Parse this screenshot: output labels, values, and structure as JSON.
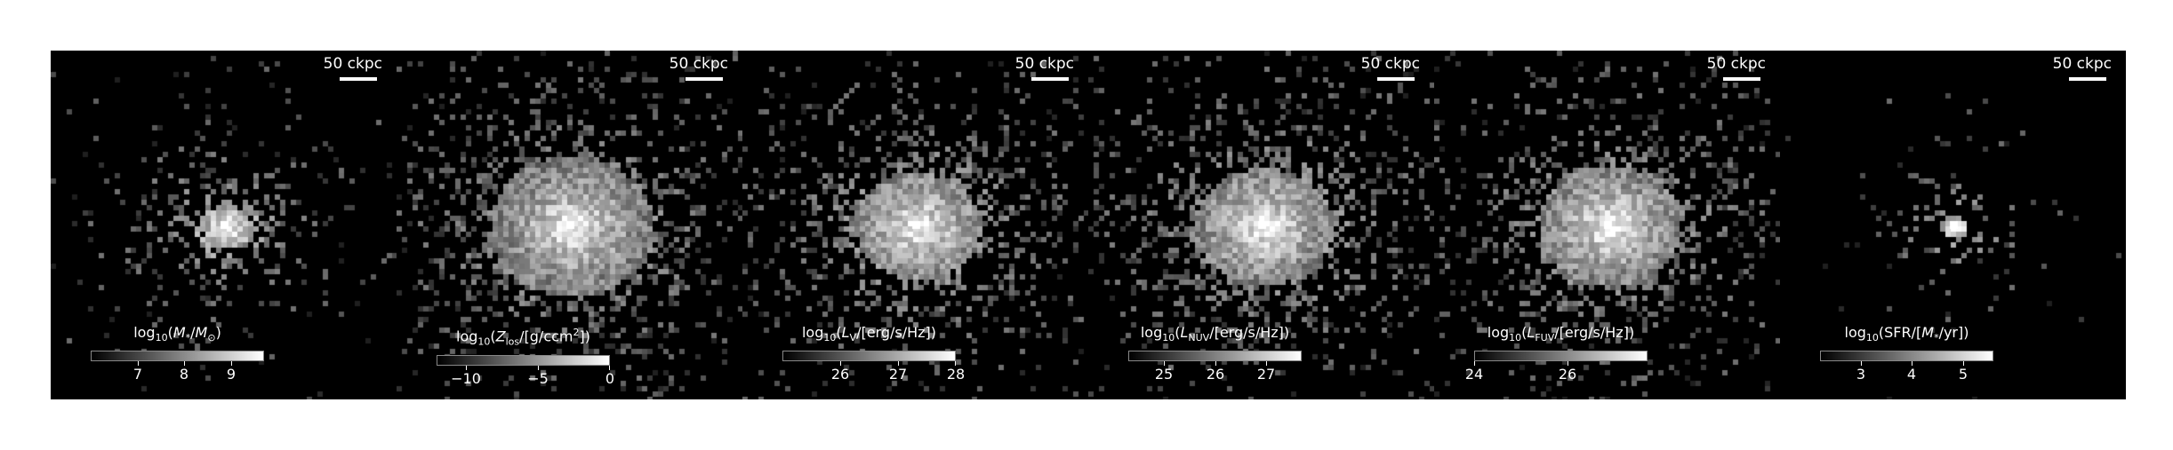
{
  "figure": {
    "scalebar_text": "50 ckpc",
    "panels": [
      {
        "id": "stellar-mass",
        "cbar_label_html": "log<sub>10</sub>(<i>M</i><sub>*</sub>/<i>M</i><sub>⊙</sub>)",
        "ticks": [
          "7",
          "8",
          "9"
        ],
        "vmin": 6.0,
        "vmax": 9.7,
        "tick_values": [
          7,
          8,
          9
        ],
        "spread": 0.45,
        "density": 0.5,
        "core": 0.28
      },
      {
        "id": "metallicity",
        "cbar_label_html": "log<sub>10</sub>(<i>Z</i><sub>los</sub>/[g/ccm<sup>2</sup>])",
        "ticks": [
          "−10",
          "−5",
          "0"
        ],
        "vmin": -12.0,
        "vmax": 0.0,
        "tick_values": [
          -10,
          -5,
          0
        ],
        "spread": 0.75,
        "density": 0.75,
        "core": 0.55
      },
      {
        "id": "luminosity-v",
        "cbar_label_html": "log<sub>10</sub>(<i>L</i><sub>V</sub>/[erg/s/Hz])",
        "ticks": [
          "26",
          "27",
          "28"
        ],
        "vmin": 25.0,
        "vmax": 28.0,
        "tick_values": [
          26,
          27,
          28
        ],
        "spread": 0.7,
        "density": 0.65,
        "core": 0.45
      },
      {
        "id": "luminosity-nuv",
        "cbar_label_html": "log<sub>10</sub>(<i>L</i><sub>NUV</sub>/[erg/s/Hz])",
        "ticks": [
          "25",
          "26",
          "27"
        ],
        "vmin": 24.3,
        "vmax": 27.7,
        "tick_values": [
          25,
          26,
          27
        ],
        "spread": 0.72,
        "density": 0.68,
        "core": 0.48
      },
      {
        "id": "luminosity-fuv",
        "cbar_label_html": "log<sub>10</sub>(<i>L</i><sub>FUV</sub>/[erg/s/Hz])",
        "ticks": [
          "24",
          "26"
        ],
        "vmin": 24.0,
        "vmax": 27.7,
        "tick_values": [
          24,
          26
        ],
        "spread": 0.72,
        "density": 0.68,
        "core": 0.5
      },
      {
        "id": "sfr",
        "cbar_label_html": "log<sub>10</sub>(SFR/[<i>M</i><sub>*</sub>/yr])",
        "ticks": [
          "3",
          "4",
          "5"
        ],
        "vmin": 2.2,
        "vmax": 5.6,
        "tick_values": [
          3,
          4,
          5
        ],
        "spread": 0.3,
        "density": 0.4,
        "core": 0.22
      }
    ]
  }
}
